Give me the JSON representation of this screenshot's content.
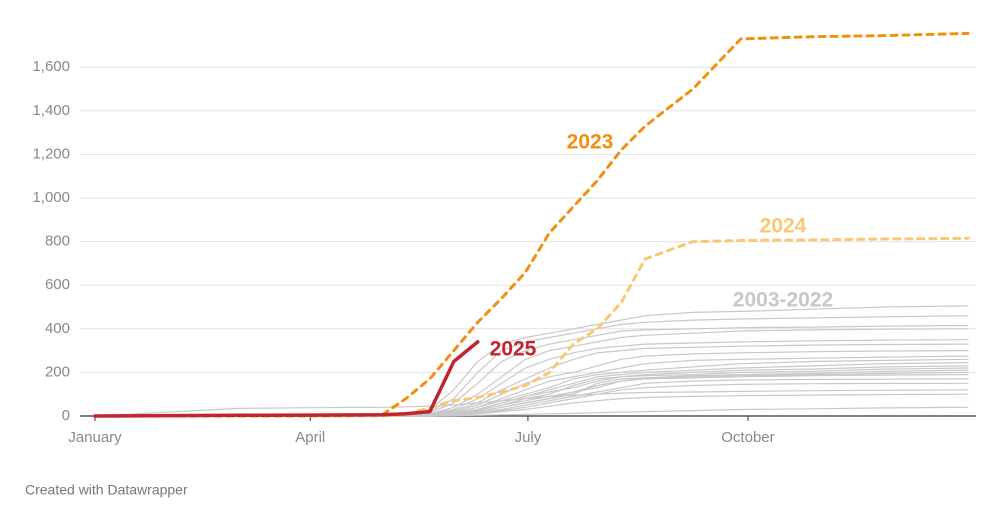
{
  "chart_data": {
    "type": "line",
    "x": [
      0,
      60,
      90,
      120,
      130,
      140,
      150,
      160,
      170,
      180,
      190,
      200,
      210,
      220,
      230,
      250,
      270,
      300,
      330,
      365
    ],
    "xlim": [
      0,
      365
    ],
    "xticks": [
      {
        "value": 0,
        "label": "January"
      },
      {
        "value": 90,
        "label": "April"
      },
      {
        "value": 181,
        "label": "July"
      },
      {
        "value": 273,
        "label": "October"
      }
    ],
    "ylim": [
      0,
      1800
    ],
    "yticks": [
      0,
      200,
      400,
      600,
      800,
      {
        "value": 1000,
        "label": "1,000"
      },
      {
        "value": 1200,
        "label": "1,200"
      },
      {
        "value": 1400,
        "label": "1,400"
      },
      {
        "value": 1600,
        "label": "1,600"
      }
    ],
    "grid": true,
    "group_label": "2003-2022",
    "group_color": "#c8c8c8",
    "series": [
      {
        "color": "#c8c8c8",
        "values": [
          0,
          0,
          0,
          2,
          10,
          30,
          120,
          250,
          330,
          360,
          380,
          400,
          420,
          440,
          460,
          475,
          480,
          490,
          500,
          505
        ]
      },
      {
        "color": "#c8c8c8",
        "values": [
          0,
          0,
          0,
          2,
          8,
          20,
          80,
          200,
          300,
          340,
          360,
          380,
          400,
          420,
          430,
          440,
          445,
          450,
          455,
          460
        ]
      },
      {
        "color": "#c8c8c8",
        "values": [
          0,
          0,
          0,
          1,
          5,
          15,
          60,
          150,
          250,
          300,
          330,
          350,
          370,
          390,
          395,
          400,
          405,
          408,
          412,
          415
        ]
      },
      {
        "color": "#c8c8c8",
        "values": [
          0,
          0,
          0,
          1,
          5,
          10,
          40,
          100,
          180,
          260,
          300,
          320,
          340,
          360,
          370,
          380,
          390,
          395,
          398,
          400
        ]
      },
      {
        "color": "#c8c8c8",
        "values": [
          0,
          0,
          0,
          1,
          4,
          10,
          30,
          80,
          150,
          220,
          260,
          290,
          310,
          320,
          330,
          335,
          340,
          345,
          348,
          350
        ]
      },
      {
        "color": "#c8c8c8",
        "values": [
          0,
          0,
          0,
          1,
          3,
          8,
          25,
          60,
          120,
          170,
          220,
          260,
          290,
          300,
          310,
          315,
          320,
          325,
          328,
          330
        ]
      },
      {
        "color": "#c8c8c8",
        "values": [
          0,
          0,
          0,
          1,
          3,
          8,
          20,
          50,
          100,
          150,
          180,
          200,
          230,
          260,
          275,
          285,
          290,
          295,
          298,
          300
        ]
      },
      {
        "color": "#c8c8c8",
        "values": [
          0,
          0,
          0,
          0,
          2,
          6,
          15,
          40,
          80,
          120,
          160,
          180,
          200,
          220,
          240,
          255,
          260,
          265,
          270,
          275
        ]
      },
      {
        "color": "#c8c8c8",
        "values": [
          0,
          0,
          0,
          0,
          2,
          5,
          15,
          40,
          70,
          100,
          130,
          170,
          190,
          200,
          210,
          225,
          240,
          250,
          255,
          260
        ]
      },
      {
        "color": "#c8c8c8",
        "values": [
          0,
          0,
          0,
          0,
          2,
          5,
          12,
          30,
          60,
          90,
          120,
          150,
          180,
          190,
          200,
          210,
          220,
          230,
          240,
          245
        ]
      },
      {
        "color": "#c8c8c8",
        "values": [
          0,
          0,
          0,
          0,
          2,
          5,
          10,
          30,
          60,
          90,
          110,
          130,
          160,
          180,
          190,
          200,
          210,
          215,
          225,
          230
        ]
      },
      {
        "color": "#c8c8c8",
        "values": [
          0,
          0,
          0,
          0,
          1,
          4,
          10,
          25,
          50,
          80,
          100,
          140,
          170,
          180,
          185,
          190,
          200,
          205,
          215,
          220
        ]
      },
      {
        "color": "#c8c8c8",
        "values": [
          0,
          0,
          0,
          0,
          1,
          4,
          10,
          25,
          50,
          70,
          90,
          110,
          130,
          160,
          175,
          185,
          190,
          195,
          205,
          210
        ]
      },
      {
        "color": "#c8c8c8",
        "values": [
          0,
          0,
          0,
          0,
          1,
          3,
          8,
          20,
          40,
          60,
          80,
          100,
          150,
          170,
          175,
          180,
          185,
          190,
          195,
          200
        ]
      },
      {
        "color": "#c8c8c8",
        "values": [
          0,
          0,
          0,
          0,
          1,
          3,
          8,
          20,
          40,
          60,
          80,
          110,
          140,
          160,
          170,
          175,
          180,
          185,
          188,
          190
        ]
      },
      {
        "color": "#c8c8c8",
        "values": [
          0,
          0,
          0,
          0,
          1,
          3,
          6,
          15,
          30,
          50,
          70,
          90,
          110,
          130,
          150,
          160,
          165,
          168,
          169,
          170
        ]
      },
      {
        "color": "#c8c8c8",
        "values": [
          0,
          0,
          0,
          0,
          1,
          2,
          5,
          12,
          25,
          40,
          60,
          80,
          100,
          120,
          130,
          140,
          145,
          148,
          149,
          150
        ]
      },
      {
        "color": "#c8c8c8",
        "values": [
          0,
          35,
          38,
          40,
          42,
          45,
          50,
          60,
          70,
          80,
          90,
          95,
          100,
          105,
          108,
          110,
          113,
          116,
          118,
          120
        ]
      },
      {
        "color": "#c8c8c8",
        "values": [
          0,
          0,
          0,
          0,
          1,
          2,
          5,
          10,
          20,
          30,
          45,
          60,
          70,
          80,
          85,
          90,
          93,
          96,
          98,
          100
        ]
      },
      {
        "color": "#c8c8c8",
        "values": [
          0,
          0,
          0,
          0,
          0,
          1,
          2,
          3,
          5,
          8,
          10,
          12,
          15,
          18,
          20,
          25,
          30,
          33,
          37,
          40
        ]
      },
      {
        "name": "2024",
        "color": "#fbc773",
        "dashed": true,
        "values": [
          0,
          0,
          0,
          0,
          5,
          40,
          70,
          85,
          110,
          140,
          200,
          330,
          400,
          520,
          720,
          800,
          805,
          808,
          812,
          815
        ]
      },
      {
        "name": "2023",
        "color": "#f0900f",
        "dashed": true,
        "values": [
          0,
          0,
          0,
          5,
          80,
          170,
          300,
          430,
          540,
          660,
          840,
          960,
          1080,
          1220,
          1330,
          1500,
          1730,
          1740,
          1745,
          1755
        ]
      },
      {
        "name": "2025",
        "color": "#c0262d",
        "width": 3.5,
        "values": [
          0,
          3,
          4,
          6,
          10,
          20,
          250,
          340,
          null,
          null,
          null,
          null,
          null,
          null,
          null,
          null,
          null,
          null,
          null,
          null
        ]
      }
    ]
  },
  "footer": "Created with Datawrapper"
}
